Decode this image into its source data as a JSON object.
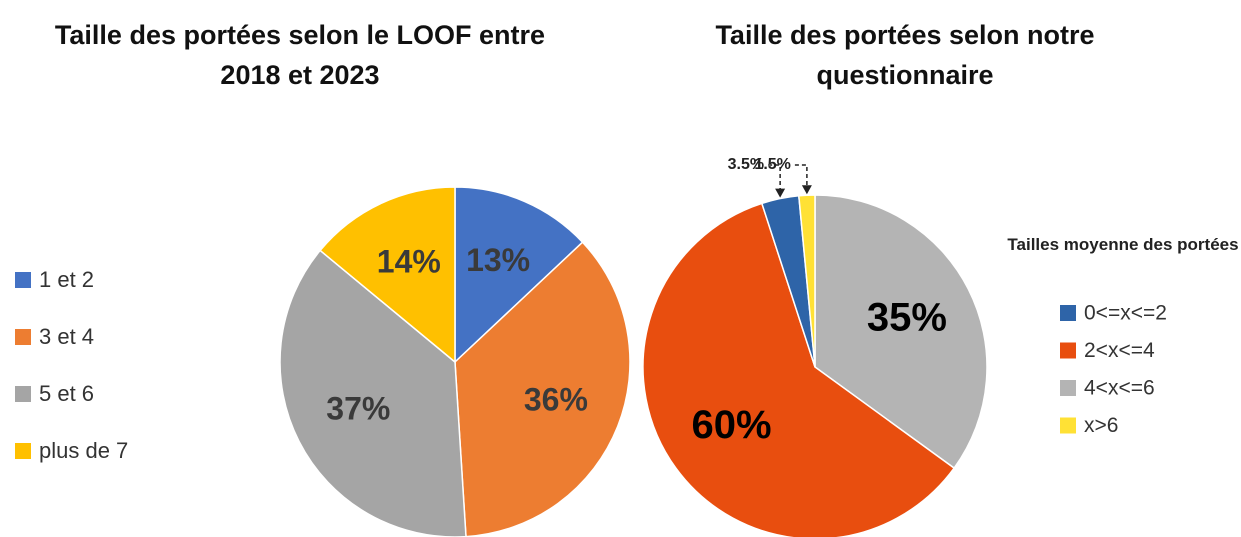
{
  "chart_data": [
    {
      "type": "pie",
      "title": "Taille des portées selon le LOOF entre 2018 et 2023",
      "categories": [
        "1 et 2",
        "3 et 4",
        "5 et 6",
        "plus de 7"
      ],
      "values": [
        13,
        36,
        37,
        14
      ],
      "value_labels": [
        "13%",
        "36%",
        "37%",
        "14%"
      ],
      "colors": [
        "#4472c4",
        "#ed7d31",
        "#a5a5a5",
        "#ffc000"
      ],
      "legend": "left"
    },
    {
      "type": "pie",
      "title": "Taille des portées selon notre questionnaire",
      "legend_title": "Tailles moyenne des portées",
      "categories": [
        "4<x<=6",
        "2<x<=4",
        "0<=x<=2",
        "x>6"
      ],
      "values": [
        35,
        60,
        3.5,
        1.5
      ],
      "value_labels": [
        "35%",
        "60%",
        "3.5%",
        "1.5%"
      ],
      "colors": [
        "#b4b4b4",
        "#e84e0f",
        "#2e64a8",
        "#ffe135"
      ],
      "legend_order": [
        2,
        1,
        0,
        3
      ],
      "legend": "right"
    }
  ]
}
